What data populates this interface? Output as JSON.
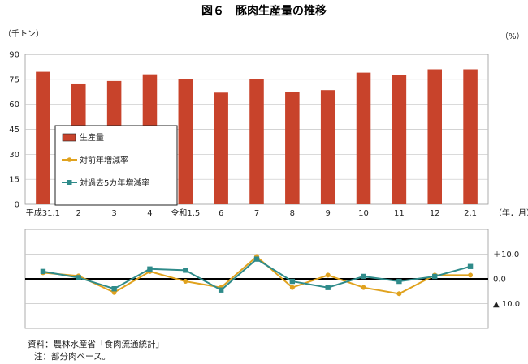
{
  "chart_data": {
    "title": "図６　豚肉生産量の推移",
    "left_unit": "（千トン）",
    "right_unit": "（%）",
    "x_unit": "（年．月）",
    "categories": [
      "平成31.1",
      "2",
      "3",
      "4",
      "令和1.5",
      "6",
      "7",
      "8",
      "9",
      "10",
      "11",
      "12",
      "2.1"
    ],
    "top_panel": {
      "type": "bar",
      "ylim": [
        0,
        90
      ],
      "yticks": [
        "0",
        "15",
        "30",
        "45",
        "60",
        "75",
        "90"
      ],
      "series": [
        {
          "name": "生産量",
          "color": "#c8432b",
          "values": [
            79.5,
            72.5,
            74,
            78,
            75,
            67,
            75,
            67.5,
            68.5,
            79,
            77.5,
            81,
            81
          ]
        }
      ]
    },
    "bottom_panel": {
      "type": "line",
      "ylim": [
        -20,
        20
      ],
      "yticks": [
        {
          "value": 10,
          "label": "＋10.0"
        },
        {
          "value": 0,
          "label": "0.0"
        },
        {
          "value": -10,
          "label": "▲ 10.0"
        }
      ],
      "series": [
        {
          "name": "対前年増減率",
          "color": "#e0a21e",
          "marker": "circle",
          "values": [
            2.5,
            1.2,
            -5.5,
            3,
            -1,
            -3.5,
            9,
            -3.5,
            1.5,
            -3.5,
            -6,
            1.5,
            1.5
          ]
        },
        {
          "name": "対過去5カ年増減率",
          "color": "#2f8b8a",
          "marker": "square",
          "values": [
            3,
            0.5,
            -4,
            4,
            3.5,
            -4.5,
            8,
            -1,
            -3.5,
            1,
            -1,
            1,
            5
          ]
        }
      ]
    },
    "legend": {
      "placement": "top-left-inside"
    }
  },
  "notes": {
    "source": "資料：農林水産省「食肉流通統計」",
    "note": "注：部分肉ベース。"
  }
}
